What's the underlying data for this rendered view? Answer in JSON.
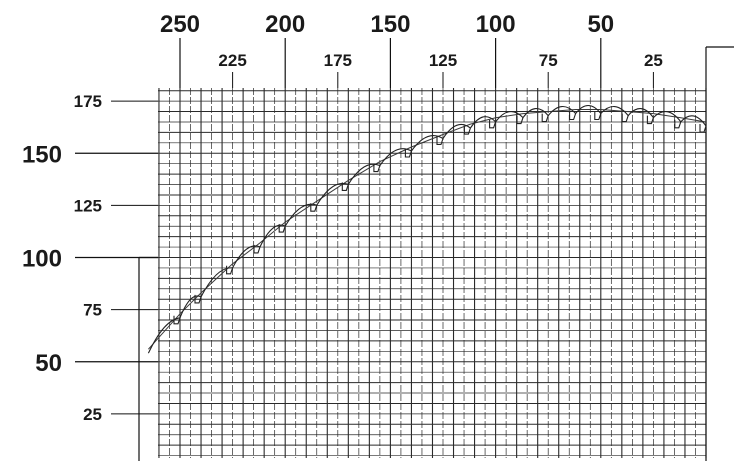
{
  "chart_data": {
    "type": "line",
    "title": "",
    "xlabel": "",
    "ylabel": "",
    "x_axis": {
      "direction": "decreasing-left-to-right",
      "range": [
        270,
        0
      ],
      "major_ticks": [
        "250",
        "200",
        "150",
        "100",
        "50"
      ],
      "minor_ticks": [
        "225",
        "175",
        "125",
        "75",
        "25"
      ]
    },
    "y_axis": {
      "range": [
        0,
        180
      ],
      "major_ticks": [
        "150",
        "100",
        "50"
      ],
      "minor_ticks": [
        "175",
        "125",
        "75",
        "25"
      ]
    },
    "grid": true,
    "series": [
      {
        "style": "scalloped-trace",
        "x": [
          265,
          250,
          240,
          225,
          212,
          200,
          185,
          170,
          155,
          140,
          125,
          112,
          100,
          87,
          75,
          62,
          50,
          37,
          25,
          12,
          0
        ],
        "y": [
          56,
          73,
          83,
          97,
          107,
          117,
          127,
          137,
          146,
          153,
          159,
          164,
          167,
          169,
          170,
          171,
          171,
          170,
          169,
          167,
          165
        ]
      }
    ]
  }
}
